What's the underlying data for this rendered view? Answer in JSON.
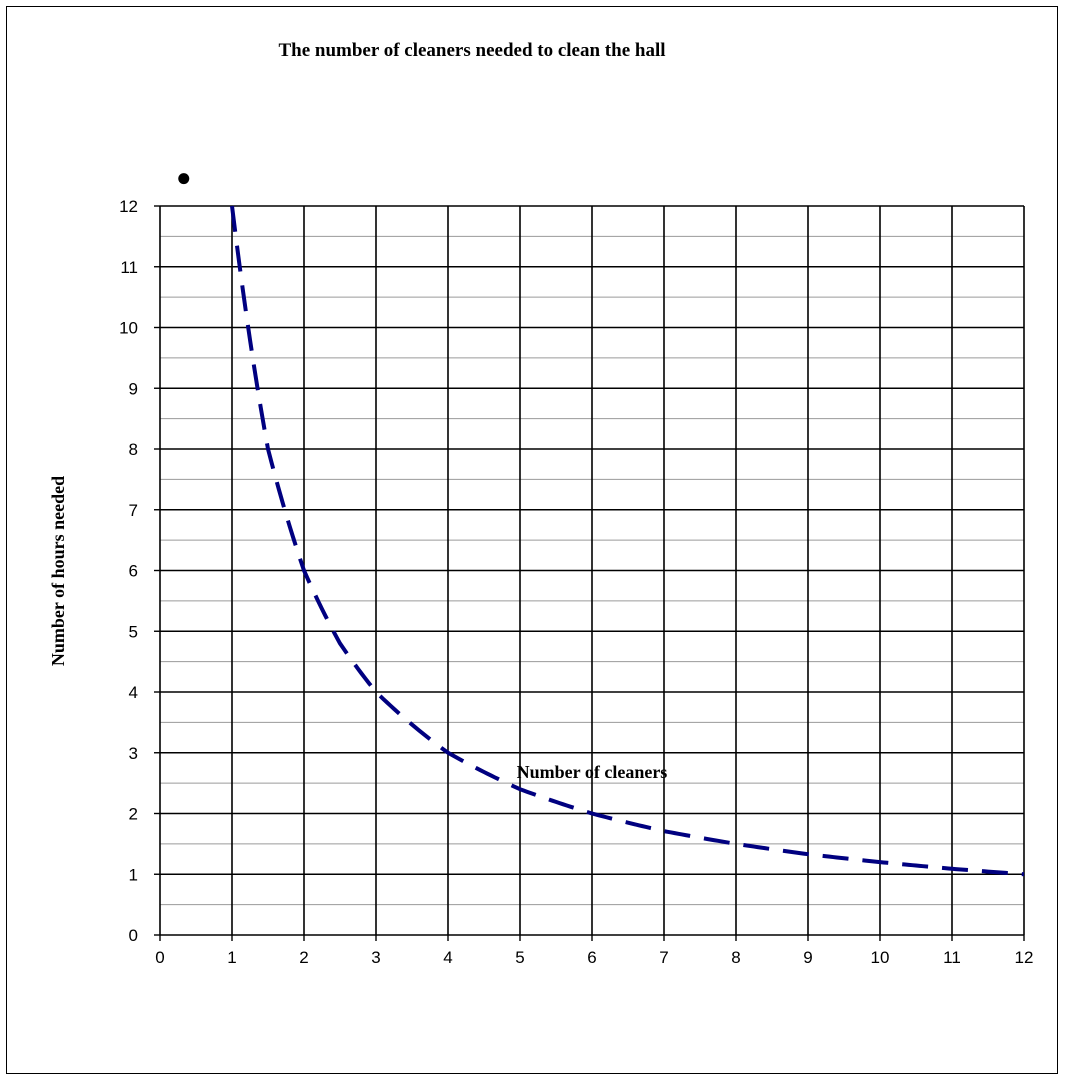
{
  "chart_data": {
    "type": "line",
    "title": "The number of cleaners needed to clean the hall",
    "xlabel": "Number of cleaners",
    "ylabel": "Number of hours needed",
    "xlim": [
      0,
      12
    ],
    "ylim": [
      0,
      12
    ],
    "x_ticks": [
      "0",
      "1",
      "2",
      "3",
      "4",
      "5",
      "6",
      "7",
      "8",
      "9",
      "10",
      "11",
      "12"
    ],
    "y_ticks": [
      "0",
      "1",
      "2",
      "3",
      "4",
      "5",
      "6",
      "7",
      "8",
      "9",
      "10",
      "11",
      "12"
    ],
    "grid": true,
    "series": [
      {
        "style": "dashed",
        "color": "#000080",
        "x": [
          1,
          1.5,
          2,
          2.5,
          3,
          4,
          5,
          6,
          7,
          8,
          9,
          10,
          11,
          12
        ],
        "y": [
          12,
          8,
          6,
          4.8,
          4,
          3,
          2.4,
          2,
          1.71,
          1.5,
          1.33,
          1.2,
          1.09,
          1
        ]
      }
    ],
    "annotations": [
      {
        "type": "marker",
        "shape": "dot",
        "x": 0.33,
        "y": 12.45
      }
    ]
  }
}
